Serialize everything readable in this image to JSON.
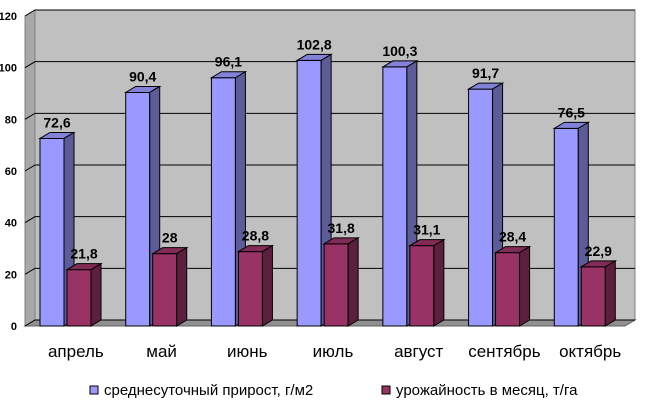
{
  "chart_data": {
    "type": "bar",
    "title": "",
    "xlabel": "",
    "ylabel": "",
    "ylim": [
      0,
      120
    ],
    "yticks": [
      "0",
      "20",
      "40",
      "60",
      "80",
      "100",
      "120"
    ],
    "grid": true,
    "legend_position": "bottom",
    "categories": [
      "апрель",
      "май",
      "июнь",
      "июль",
      "август",
      "сентябрь",
      "октябрь"
    ],
    "series": [
      {
        "name": "среднесуточный прирост, г/м2",
        "color": "#9999ff",
        "values": [
          72.6,
          90.4,
          96.1,
          102.8,
          100.3,
          91.7,
          76.5
        ],
        "labels": [
          "72,6",
          "90,4",
          "96,1",
          "102,8",
          "100,3",
          "91,7",
          "76,5"
        ]
      },
      {
        "name": "урожайность в месяц, т/га",
        "color": "#993366",
        "values": [
          21.8,
          28,
          28.8,
          31.8,
          31.1,
          28.4,
          22.9
        ],
        "labels": [
          "21,8",
          "28",
          "28,8",
          "31,8",
          "31,1",
          "28,4",
          "22,9"
        ]
      }
    ]
  }
}
